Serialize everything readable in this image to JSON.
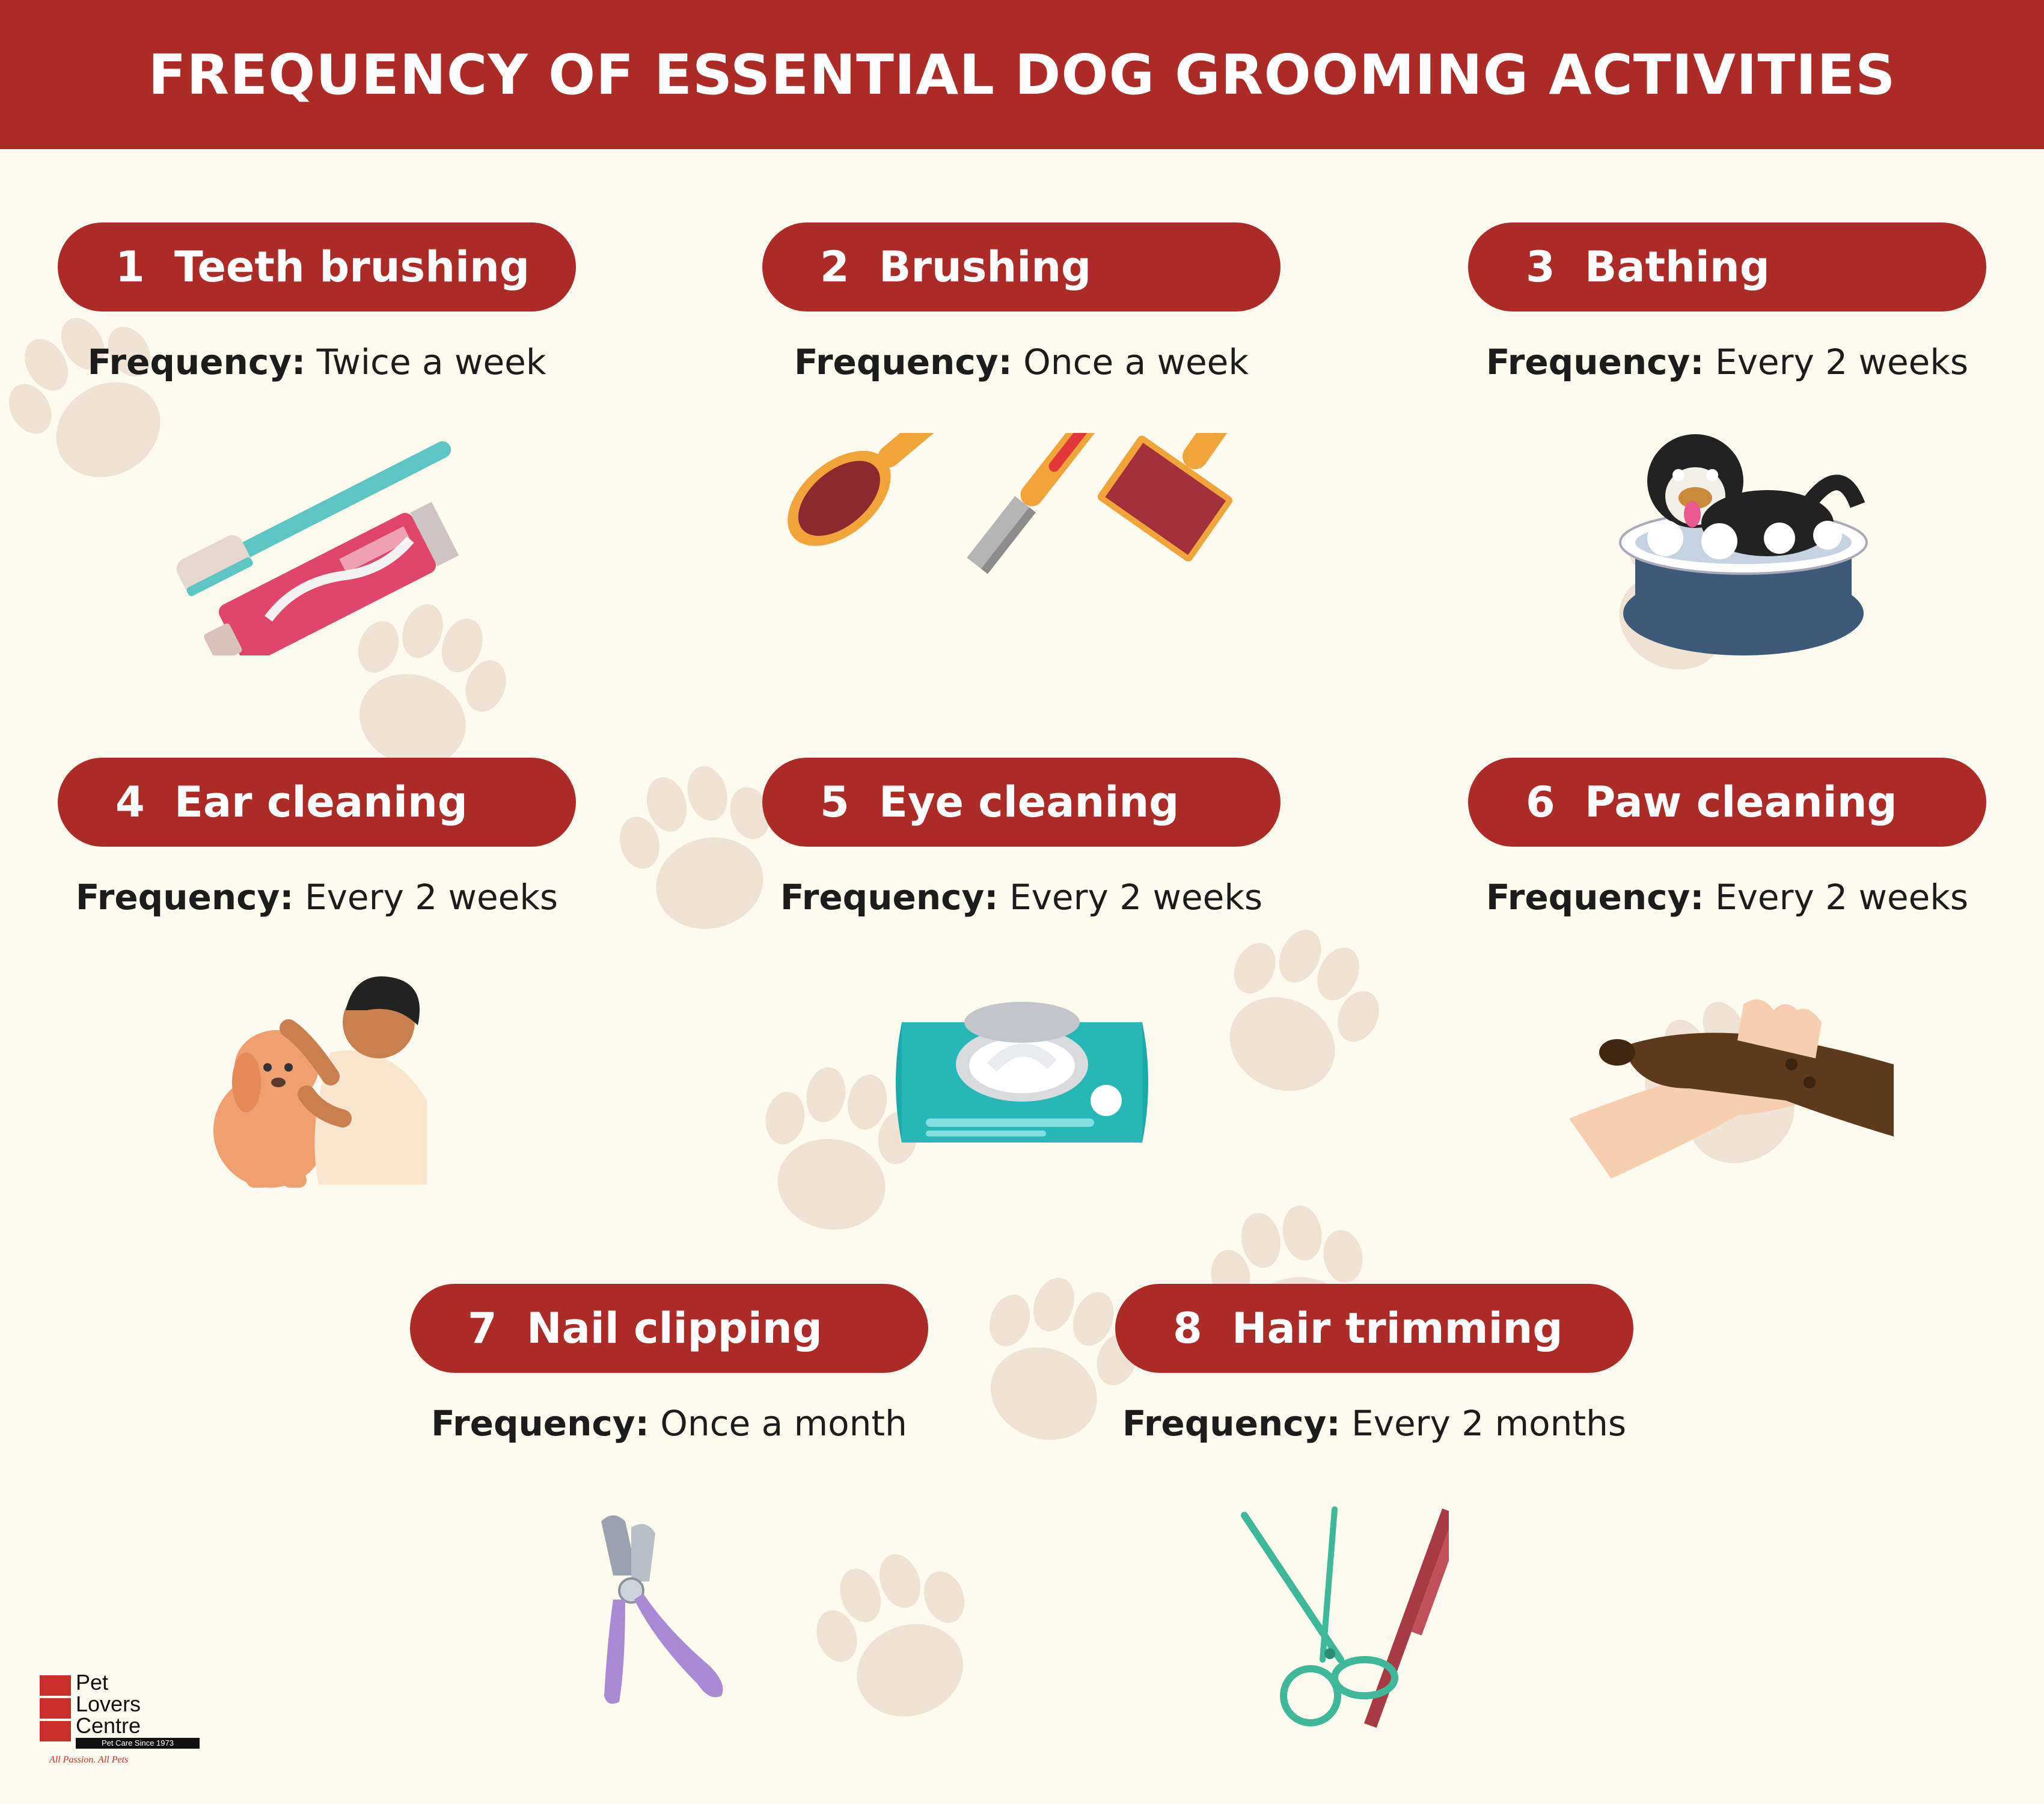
{
  "header": {
    "title": "FREQUENCY OF ESSENTIAL DOG GROOMING ACTIVITIES"
  },
  "freq_label": "Frequency:",
  "activities": [
    {
      "num": "1",
      "title": "Teeth brushing",
      "frequency": "Twice a week",
      "icon": "toothbrush-toothpaste-icon"
    },
    {
      "num": "2",
      "title": "Brushing",
      "frequency": "Once a week",
      "icon": "grooming-brushes-icon"
    },
    {
      "num": "3",
      "title": "Bathing",
      "frequency": "Every 2 weeks",
      "icon": "dog-in-bathtub-icon"
    },
    {
      "num": "4",
      "title": "Ear cleaning",
      "frequency": "Every 2 weeks",
      "icon": "person-cleaning-dog-ear-icon"
    },
    {
      "num": "5",
      "title": "Eye cleaning",
      "frequency": "Every 2 weeks",
      "icon": "wet-wipes-pack-icon"
    },
    {
      "num": "6",
      "title": "Paw cleaning",
      "frequency": "Every 2 weeks",
      "icon": "hand-holding-paw-icon"
    },
    {
      "num": "7",
      "title": "Nail clipping",
      "frequency": "Once a month",
      "icon": "nail-clipper-icon"
    },
    {
      "num": "8",
      "title": "Hair trimming",
      "frequency": "Every 2 months",
      "icon": "scissors-and-comb-icon"
    }
  ],
  "logo": {
    "line1": "Pet",
    "line2": "Lovers",
    "line3": "Centre",
    "since": "Pet Care Since 1973",
    "tagline": "All Passion. All Pets"
  },
  "colors": {
    "accent": "#ad2b27",
    "background": "#fdfaef",
    "paw": "#efe3d6"
  }
}
